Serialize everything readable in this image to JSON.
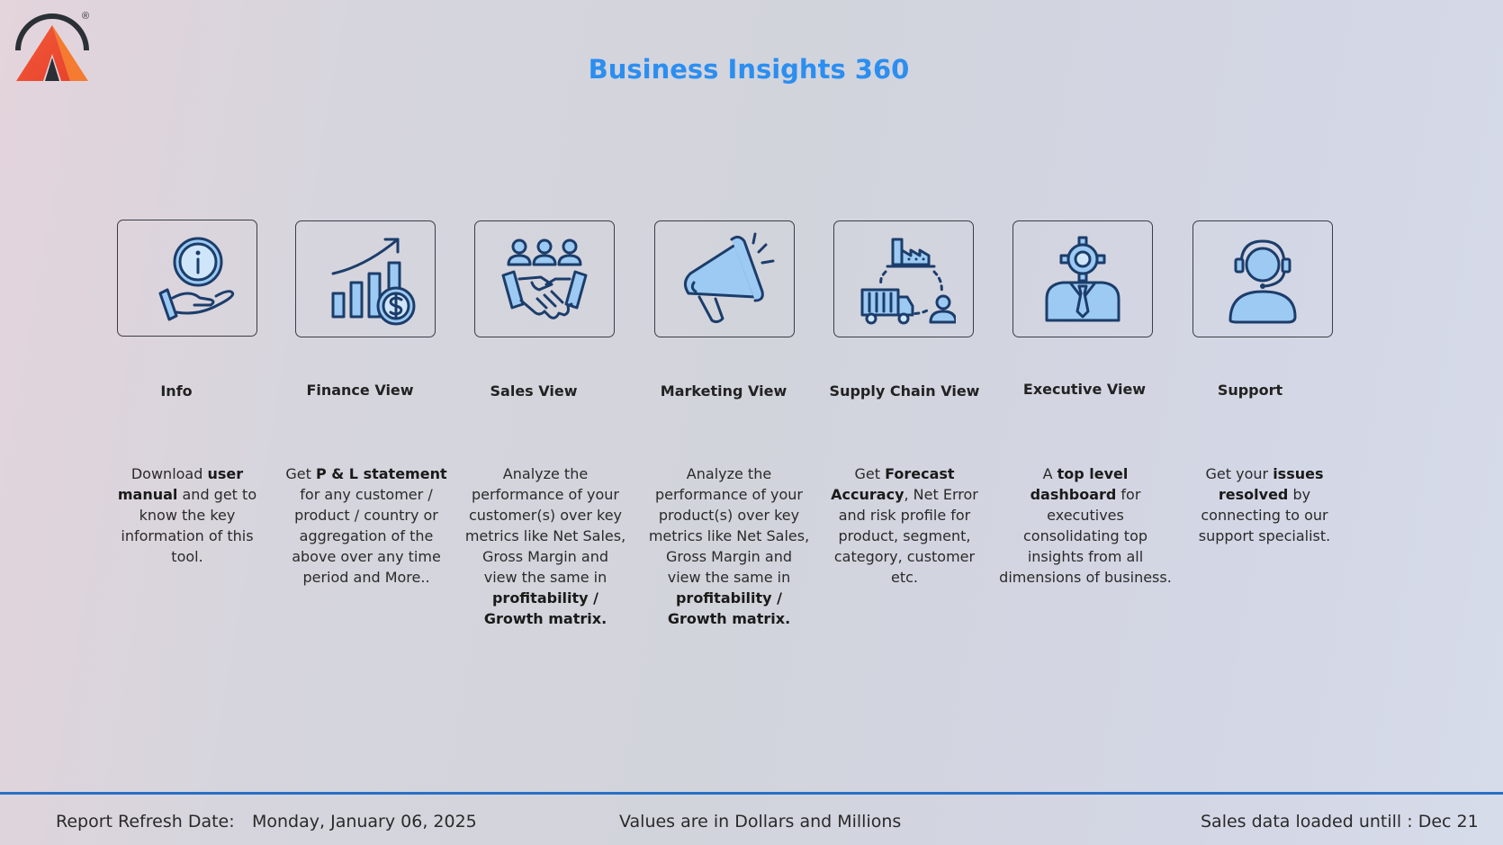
{
  "header": {
    "title": "Business Insights 360",
    "logo_registered_mark": "®"
  },
  "cards": [
    {
      "id": "info",
      "icon": "info-hand-icon",
      "label": "Info",
      "desc": [
        "Download ",
        {
          "b": "user manual"
        },
        " and get to know the key information of this tool."
      ]
    },
    {
      "id": "finance",
      "icon": "finance-chart-icon",
      "label": "Finance View",
      "desc": [
        "Get  ",
        {
          "b": "P & L statement"
        },
        " for any customer / product / country or aggregation of the above over any time period and More.."
      ]
    },
    {
      "id": "sales",
      "icon": "handshake-icon",
      "label": "Sales View",
      "desc": [
        "Analyze the performance of your customer(s) over key metrics like Net Sales, Gross Margin and view the same in ",
        {
          "b": "profitability / Growth matrix."
        }
      ]
    },
    {
      "id": "marketing",
      "icon": "megaphone-icon",
      "label": "Marketing View",
      "desc": [
        "Analyze the performance of your product(s) over key metrics like Net Sales, Gross Margin and view the same in ",
        {
          "b": "profitability / Growth matrix."
        }
      ]
    },
    {
      "id": "supply",
      "icon": "supply-chain-icon",
      "label": "Supply Chain View",
      "desc": [
        "Get ",
        {
          "b": "Forecast Accuracy"
        },
        ", Net Error and risk profile for product, segment, category, customer etc."
      ]
    },
    {
      "id": "executive",
      "icon": "executive-icon",
      "label": "Executive View",
      "desc": [
        "A ",
        {
          "b": "top level dashboard"
        },
        " for executives consolidating top insights from all dimensions of business."
      ]
    },
    {
      "id": "support",
      "icon": "support-agent-icon",
      "label": "Support",
      "desc": [
        "Get your ",
        {
          "b": "issues resolved"
        },
        " by connecting to our support specialist."
      ]
    }
  ],
  "footer": {
    "refresh_label": "Report Refresh Date:",
    "refresh_date": "Monday, January 06, 2025",
    "values_note": "Values are in Dollars and Millions",
    "loaded_note": "Sales data loaded untill : Dec 21"
  },
  "colors": {
    "title": "#2b8ef0",
    "icon_stroke": "#1c3d6b",
    "icon_fill": "#9ccaf2",
    "footer_line": "#2a6fc4"
  }
}
